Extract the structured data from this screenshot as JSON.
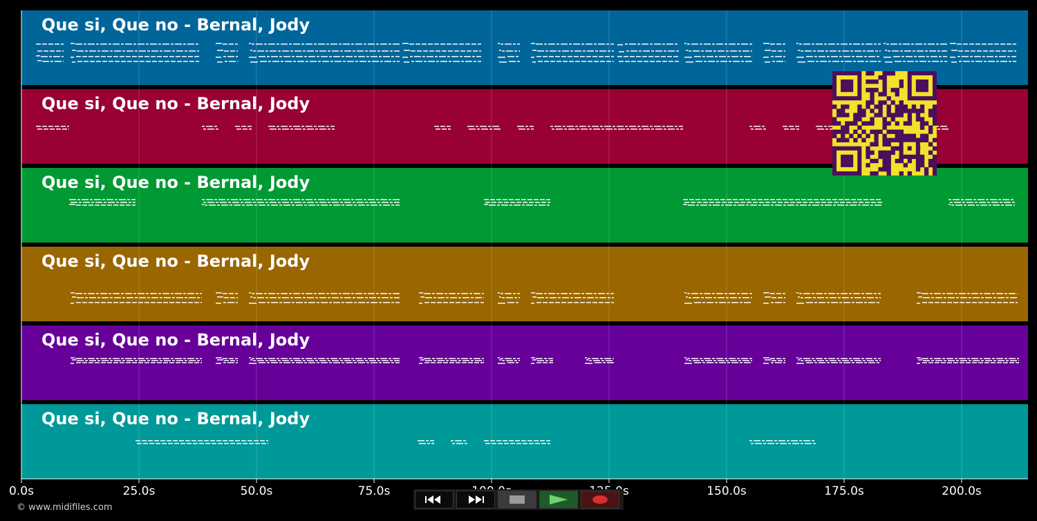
{
  "tracks": [
    {
      "title": "Que si, Que no - Bernal, Jody",
      "color": "#006699"
    },
    {
      "title": "Que si, Que no - Bernal, Jody",
      "color": "#990033"
    },
    {
      "title": "Que si, Que no - Bernal, Jody",
      "color": "#009933"
    },
    {
      "title": "Que si, Que no - Bernal, Jody",
      "color": "#996600"
    },
    {
      "title": "Que si, Que no - Bernal, Jody",
      "color": "#660099"
    },
    {
      "title": "Que si, Que no - Bernal, Jody",
      "color": "#009999"
    }
  ],
  "timeline": {
    "unit": "s",
    "max_seconds": 214,
    "ticks": [
      "0.0s",
      "25.0s",
      "50.0s",
      "75.0s",
      "100.0s",
      "125.0s",
      "150.0s",
      "175.0s",
      "200.0s"
    ]
  },
  "footer": {
    "copyright": "© www.midifiles.com"
  },
  "transport": {
    "buttons": [
      "rewind-icon",
      "fast-forward-icon",
      "stop-icon",
      "play-icon",
      "record-icon"
    ],
    "colors": {
      "play": "#6fd16f",
      "record": "#d63030",
      "stop": "#9a9a9a"
    }
  },
  "qr_code": {
    "colors": {
      "foreground": "#4b0f5c",
      "background": "#f2e12d"
    }
  }
}
